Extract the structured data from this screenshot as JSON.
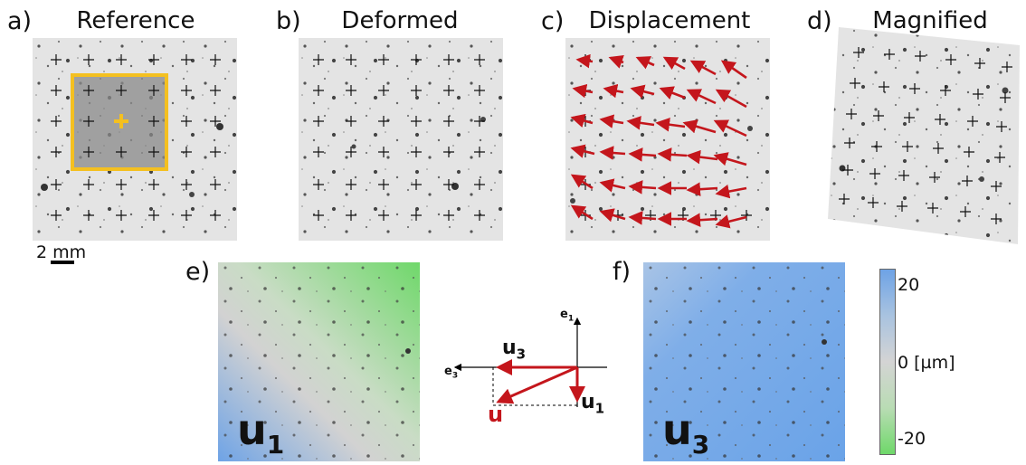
{
  "panels": {
    "a": {
      "label": "a)",
      "title": "Reference"
    },
    "b": {
      "label": "b)",
      "title": "Deformed"
    },
    "c": {
      "label": "c)",
      "title": "Displacement"
    },
    "d": {
      "label": "d)",
      "title": "Magnified"
    },
    "e": {
      "label": "e)",
      "field": "u",
      "sub": "1"
    },
    "f": {
      "label": "f)",
      "field": "u",
      "sub": "3"
    }
  },
  "scalebar": {
    "value": "2",
    "unit": "mm"
  },
  "vector_diagram": {
    "e1": "e",
    "e1_sub": "1",
    "e3": "e",
    "e3_sub": "3",
    "u": "u",
    "u1": "u",
    "u1_sub": "1",
    "u3": "u",
    "u3_sub": "3"
  },
  "colorbar": {
    "max_label": "20",
    "mid_label": "0 [µm]",
    "min_label": "-20",
    "colors": {
      "top": "#6ea3e6",
      "mid": "#d4d4d4",
      "bottom": "#6fd86a"
    }
  },
  "colors": {
    "accent_box": "#f4c020",
    "arrow": "#c4161c",
    "grid_marker": "#111111"
  }
}
